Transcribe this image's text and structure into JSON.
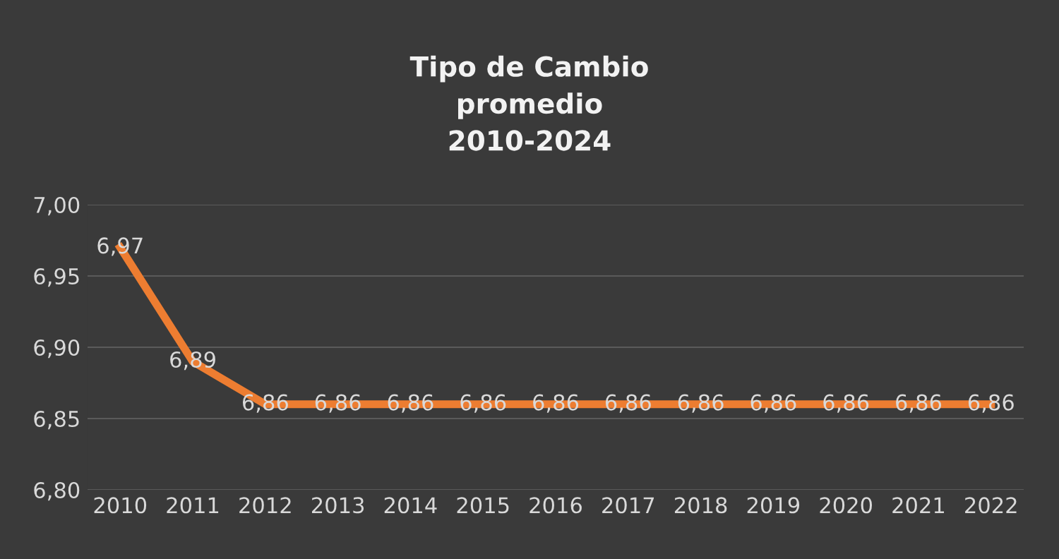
{
  "chart_data": {
    "type": "line",
    "title": "Tipo de Cambio\npromedio\n2010-2024",
    "categories": [
      "2010",
      "2011",
      "2012",
      "2013",
      "2014",
      "2015",
      "2016",
      "2017",
      "2018",
      "2019",
      "2020",
      "2021",
      "2022"
    ],
    "series": [
      {
        "color": "#ed7d31",
        "values": [
          6.97,
          6.89,
          6.86,
          6.86,
          6.86,
          6.86,
          6.86,
          6.86,
          6.86,
          6.86,
          6.86,
          6.86,
          6.86
        ],
        "value_labels": [
          "6,97",
          "6,89",
          "6,86",
          "6,86",
          "6,86",
          "6,86",
          "6,86",
          "6,86",
          "6,86",
          "6,86",
          "6,86",
          "6,86",
          "6,86"
        ]
      }
    ],
    "ylim": [
      6.8,
      7.0
    ],
    "yticks": [
      {
        "value": 6.8,
        "label": "6,80"
      },
      {
        "value": 6.85,
        "label": "6,85"
      },
      {
        "value": 6.9,
        "label": "6,90"
      },
      {
        "value": 6.95,
        "label": "6,95"
      },
      {
        "value": 7.0,
        "label": "7,00"
      }
    ],
    "grid": "y",
    "legend": false,
    "marker": "none",
    "line_style": "solid"
  }
}
